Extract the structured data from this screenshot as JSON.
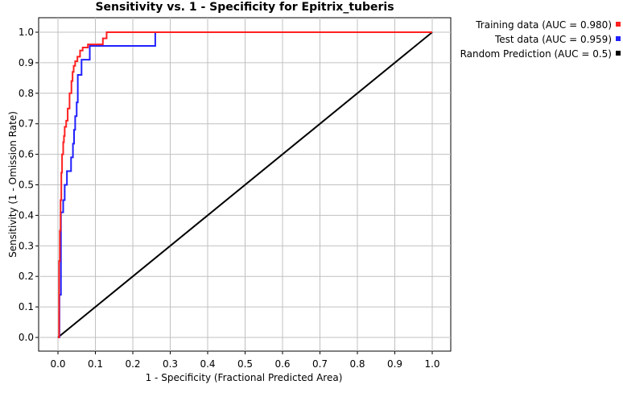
{
  "chart_data": {
    "type": "line",
    "title": "Sensitivity vs. 1 - Specificity for Epitrix_tuberis",
    "xlabel": "1 - Specificity  (Fractional Predicted Area)",
    "ylabel": "Sensitivity  (1 - Omission Rate)",
    "xlim": [
      0,
      1
    ],
    "ylim": [
      0,
      1
    ],
    "xticks": [
      "0.0",
      "0.1",
      "0.2",
      "0.3",
      "0.4",
      "0.5",
      "0.6",
      "0.7",
      "0.8",
      "0.9",
      "1.0"
    ],
    "yticks": [
      "0.0",
      "0.1",
      "0.2",
      "0.3",
      "0.4",
      "0.5",
      "0.6",
      "0.7",
      "0.8",
      "0.9",
      "1.0"
    ],
    "grid": true,
    "legend_position": "top-right",
    "series": [
      {
        "name": "Training data (AUC = 0.980)",
        "color": "#ff2020",
        "x": [
          0.0,
          0.003,
          0.003,
          0.005,
          0.005,
          0.007,
          0.007,
          0.009,
          0.009,
          0.011,
          0.011,
          0.014,
          0.014,
          0.016,
          0.016,
          0.018,
          0.018,
          0.022,
          0.022,
          0.026,
          0.026,
          0.031,
          0.031,
          0.036,
          0.036,
          0.039,
          0.039,
          0.042,
          0.042,
          0.046,
          0.046,
          0.052,
          0.052,
          0.059,
          0.059,
          0.066,
          0.066,
          0.08,
          0.08,
          0.12,
          0.12,
          0.13,
          0.13,
          1.0
        ],
        "y": [
          0.0,
          0.0,
          0.25,
          0.25,
          0.35,
          0.35,
          0.45,
          0.45,
          0.54,
          0.54,
          0.6,
          0.6,
          0.64,
          0.64,
          0.66,
          0.66,
          0.69,
          0.69,
          0.71,
          0.71,
          0.75,
          0.75,
          0.8,
          0.8,
          0.84,
          0.84,
          0.87,
          0.87,
          0.89,
          0.89,
          0.905,
          0.905,
          0.92,
          0.92,
          0.94,
          0.94,
          0.95,
          0.95,
          0.96,
          0.96,
          0.98,
          0.98,
          1.0,
          1.0
        ]
      },
      {
        "name": "Test data (AUC = 0.959)",
        "color": "#2020ff",
        "x": [
          0.0,
          0.004,
          0.004,
          0.008,
          0.008,
          0.014,
          0.014,
          0.018,
          0.018,
          0.024,
          0.024,
          0.035,
          0.035,
          0.04,
          0.04,
          0.043,
          0.043,
          0.046,
          0.046,
          0.05,
          0.05,
          0.053,
          0.053,
          0.063,
          0.063,
          0.085,
          0.085,
          0.11,
          0.11,
          0.26,
          0.26,
          1.0
        ],
        "y": [
          0.0,
          0.0,
          0.14,
          0.14,
          0.41,
          0.41,
          0.45,
          0.45,
          0.5,
          0.5,
          0.545,
          0.545,
          0.59,
          0.59,
          0.635,
          0.635,
          0.68,
          0.68,
          0.725,
          0.725,
          0.77,
          0.77,
          0.86,
          0.86,
          0.91,
          0.91,
          0.955,
          0.955,
          0.955,
          0.955,
          1.0,
          1.0
        ]
      },
      {
        "name": "Random Prediction (AUC = 0.5)",
        "color": "#000000",
        "x": [
          0.0,
          1.0
        ],
        "y": [
          0.0,
          1.0
        ]
      }
    ]
  }
}
